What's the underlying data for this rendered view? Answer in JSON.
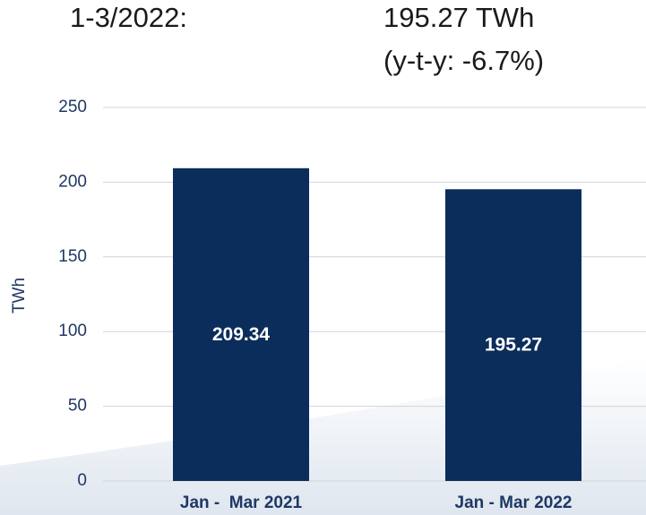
{
  "chart_data": {
    "type": "bar",
    "title": "1-3/2022:",
    "annotations": [
      "195.27 TWh",
      "(y-t-y: -6.7%)"
    ],
    "y_label": "TWh",
    "categories": [
      "Jan -  Mar 2021",
      "Jan - Mar 2022"
    ],
    "values": [
      209.34,
      195.27
    ],
    "color": "#0b2d5b",
    "ylim": [
      0,
      250
    ],
    "yticks": [
      0,
      50,
      100,
      150,
      200,
      250
    ],
    "grid": true
  }
}
